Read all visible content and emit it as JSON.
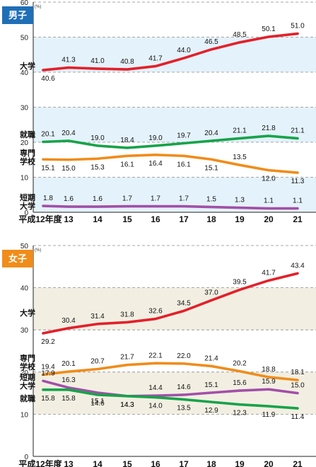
{
  "chart_data": [
    {
      "type": "line",
      "title": "男子",
      "title_color": "#1f6fb7",
      "background_color": "#e4f2fb",
      "x": [
        "平成12年度",
        "13",
        "14",
        "15",
        "16",
        "17",
        "18",
        "19",
        "20",
        "21"
      ],
      "ylim": [
        0,
        60
      ],
      "yticks": [
        0,
        10,
        20,
        30,
        40,
        50,
        60
      ],
      "y_unit": "(%)",
      "series": [
        {
          "name": "大学",
          "color": "#e3202a",
          "values": [
            40.6,
            41.3,
            41.0,
            40.8,
            41.7,
            44.0,
            46.5,
            48.5,
            50.1,
            51.0
          ]
        },
        {
          "name": "就職",
          "color": "#17a34a",
          "values": [
            20.1,
            20.4,
            19.0,
            18.4,
            19.0,
            19.7,
            20.4,
            21.1,
            21.8,
            21.1
          ]
        },
        {
          "name": "専門学校",
          "color": "#f08c1a",
          "values": [
            15.1,
            15.0,
            15.3,
            16.1,
            16.4,
            16.1,
            15.1,
            13.5,
            12.0,
            11.3
          ]
        },
        {
          "name": "短期大学",
          "color": "#a24fa8",
          "values": [
            1.8,
            1.6,
            1.6,
            1.7,
            1.7,
            1.7,
            1.5,
            1.3,
            1.1,
            1.1
          ]
        }
      ]
    },
    {
      "type": "line",
      "title": "女子",
      "title_color": "#f08c1a",
      "background_color": "#f2efe2",
      "x": [
        "平成12年度",
        "13",
        "14",
        "15",
        "16",
        "17",
        "18",
        "19",
        "20",
        "21"
      ],
      "ylim": [
        0,
        50
      ],
      "yticks": [
        0,
        10,
        20,
        30,
        40,
        50
      ],
      "y_unit": "(%)",
      "series": [
        {
          "name": "大学",
          "color": "#e3202a",
          "values": [
            29.2,
            30.4,
            31.4,
            31.8,
            32.6,
            34.5,
            37.0,
            39.5,
            41.7,
            43.4
          ]
        },
        {
          "name": "専門学校",
          "color": "#f08c1a",
          "values": [
            19.4,
            20.1,
            20.7,
            21.7,
            22.1,
            22.0,
            21.4,
            20.2,
            18.8,
            18.1
          ]
        },
        {
          "name": "短期大学",
          "color": "#a24fa8",
          "values": [
            17.9,
            16.3,
            15.1,
            14.3,
            14.4,
            14.6,
            15.1,
            15.6,
            15.9,
            15.0
          ]
        },
        {
          "name": "就職",
          "color": "#17a34a",
          "values": [
            15.8,
            15.8,
            14.6,
            14.3,
            14.0,
            13.5,
            12.9,
            12.3,
            11.9,
            11.4
          ]
        }
      ]
    }
  ]
}
